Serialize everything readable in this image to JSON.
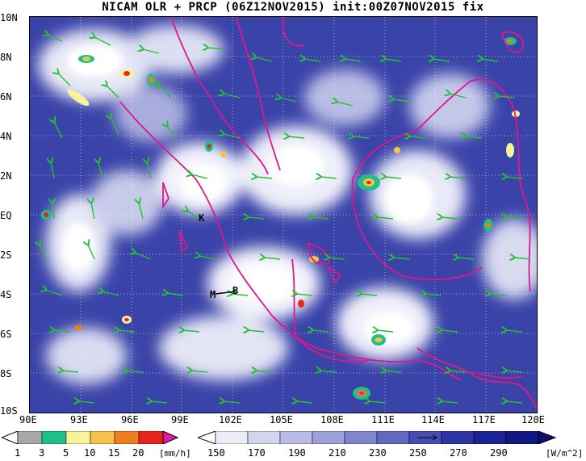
{
  "title": "NICAM OLR + PRCP (06Z12NOV2015) init:00Z07NOV2015 fix",
  "lat_labels": [
    "10N",
    "8N",
    "6N",
    "4N",
    "2N",
    "EQ",
    "2S",
    "4S",
    "6S",
    "8S",
    "10S"
  ],
  "lon_labels": [
    "90E",
    "93E",
    "96E",
    "99E",
    "102E",
    "105E",
    "108E",
    "111E",
    "114E",
    "117E",
    "120E"
  ],
  "stations": [
    "K",
    "M",
    "B"
  ],
  "precip_colorbar": {
    "labels": [
      "1",
      "3",
      "5",
      "10",
      "15",
      "20"
    ],
    "colors": [
      "#a8a8a8",
      "#1fbf8c",
      "#f7f39a",
      "#f5c24a",
      "#f07d1e",
      "#e8241d",
      "#e21aa0"
    ],
    "unit": "[mm/h]"
  },
  "olr_colorbar": {
    "labels": [
      "150",
      "170",
      "190",
      "210",
      "230",
      "250",
      "270",
      "290"
    ],
    "colors": [
      "#ffffff",
      "#ececf7",
      "#d3d4ee",
      "#b8bbe3",
      "#9ca0d8",
      "#7f85cc",
      "#6168bf",
      "#454db3",
      "#2c34a4",
      "#1b2294",
      "#101884",
      "#0b0f6e"
    ],
    "unit": "[W/m^2]"
  },
  "colors": {
    "ocean": "#3a43a8",
    "cloud": "#ffffff",
    "coast": "#e0168c",
    "wind": "#22c233"
  }
}
